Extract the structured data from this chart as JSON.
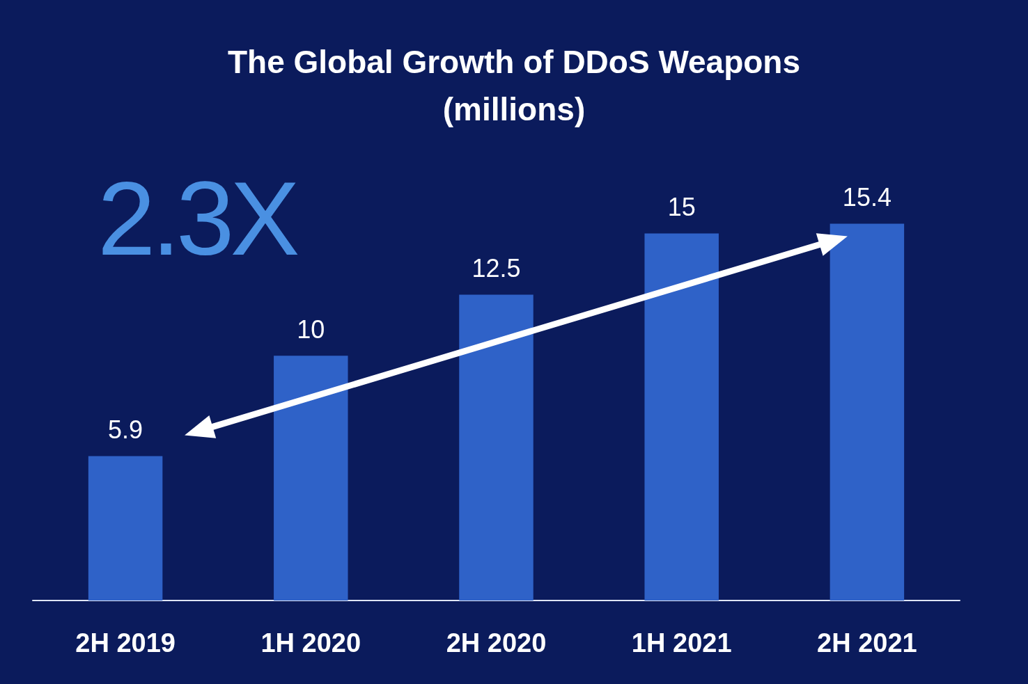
{
  "chart_data": {
    "type": "bar",
    "title": "The Global Growth of DDoS Weapons\n(millions)",
    "categories": [
      "2H 2019",
      "1H 2020",
      "2H 2020",
      "1H 2021",
      "2H 2021"
    ],
    "values": [
      5.9,
      10,
      12.5,
      15,
      15.4
    ],
    "color": "#2f62c8",
    "data_labels": true,
    "annotations": [
      "2.3X"
    ]
  }
}
